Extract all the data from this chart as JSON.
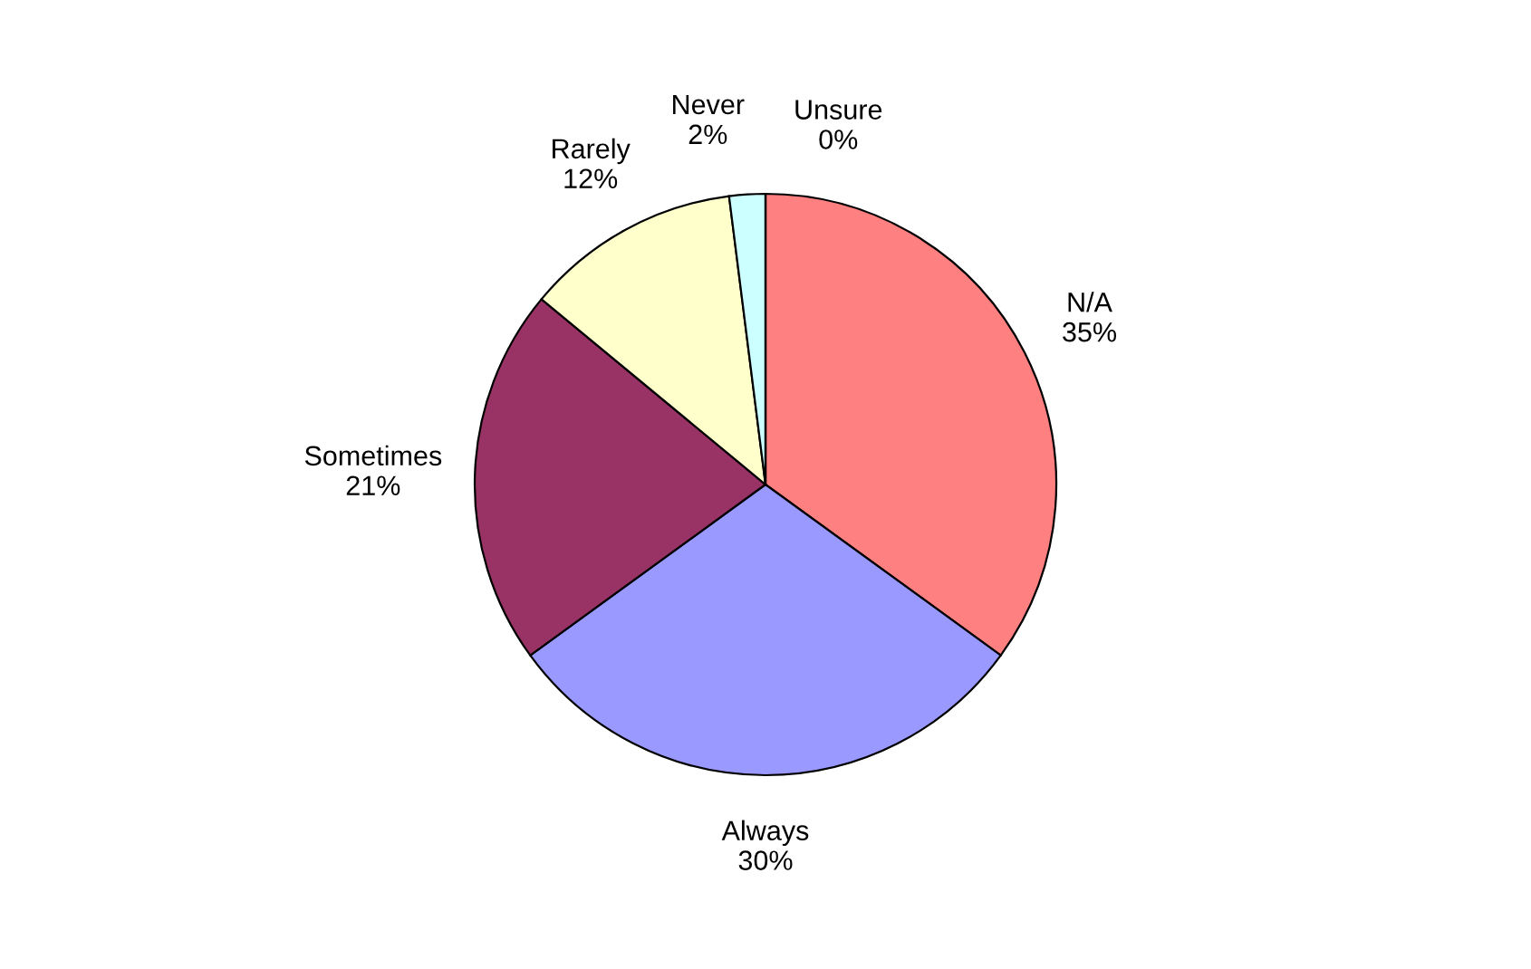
{
  "chart_data": {
    "type": "pie",
    "categories": [
      "N/A",
      "Always",
      "Sometimes",
      "Rarely",
      "Never",
      "Unsure"
    ],
    "values": [
      35,
      30,
      21,
      12,
      2,
      0
    ],
    "value_labels": [
      "35%",
      "30%",
      "21%",
      "12%",
      "2%",
      "0%"
    ],
    "colors": [
      "#ff8080",
      "#9999ff",
      "#993366",
      "#ffffcc",
      "#ccffff",
      "#660066"
    ],
    "legend": false
  }
}
